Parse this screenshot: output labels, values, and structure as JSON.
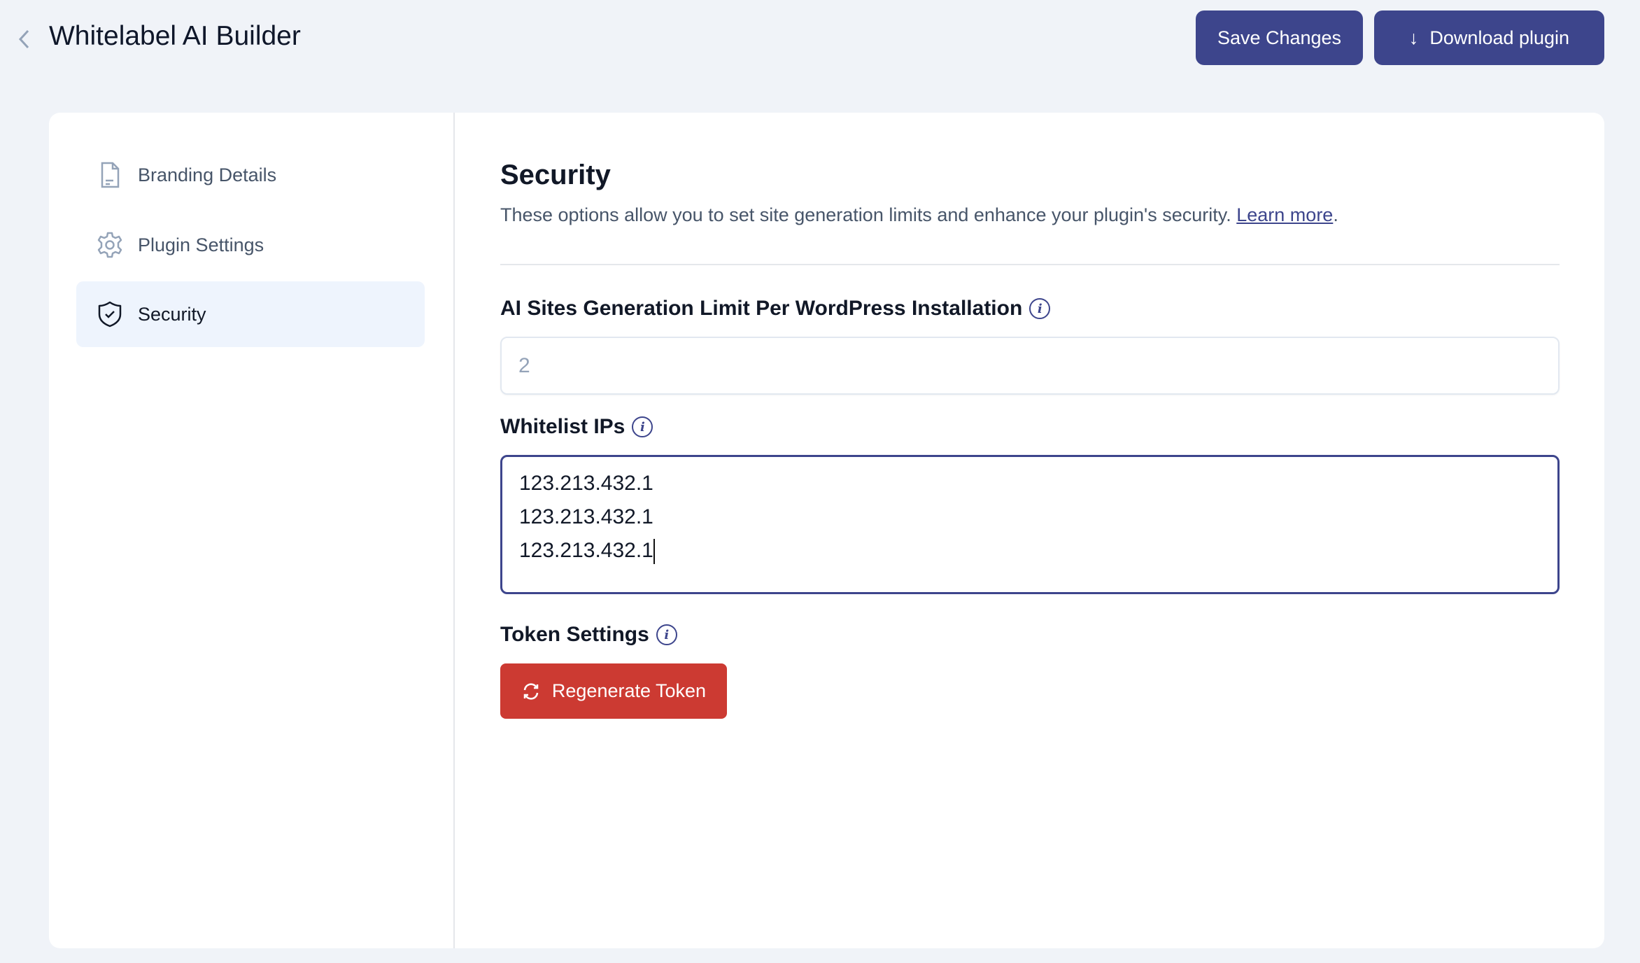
{
  "header": {
    "title": "Whitelabel AI Builder",
    "save_label": "Save Changes",
    "download_label": "Download plugin"
  },
  "sidebar": {
    "items": [
      {
        "label": "Branding Details",
        "icon": "document-icon"
      },
      {
        "label": "Plugin Settings",
        "icon": "gear-icon"
      },
      {
        "label": "Security",
        "icon": "shield-check-icon",
        "active": true
      }
    ]
  },
  "main": {
    "heading": "Security",
    "description": "These options allow you to set site generation limits and enhance your plugin's security.",
    "learn_more": "Learn more",
    "period": ".",
    "limit_label": "AI Sites Generation Limit Per WordPress Installation",
    "limit_value": "2",
    "whitelist_label": "Whitelist IPs",
    "whitelist_ips": [
      "123.213.432.1",
      "123.213.432.1",
      "123.213.432.1"
    ],
    "token_label": "Token Settings",
    "regenerate_label": "Regenerate Token"
  },
  "colors": {
    "primary": "#3d458c",
    "danger": "#cc3a32",
    "background": "#f0f3f8",
    "active_nav": "#eef4fd"
  }
}
